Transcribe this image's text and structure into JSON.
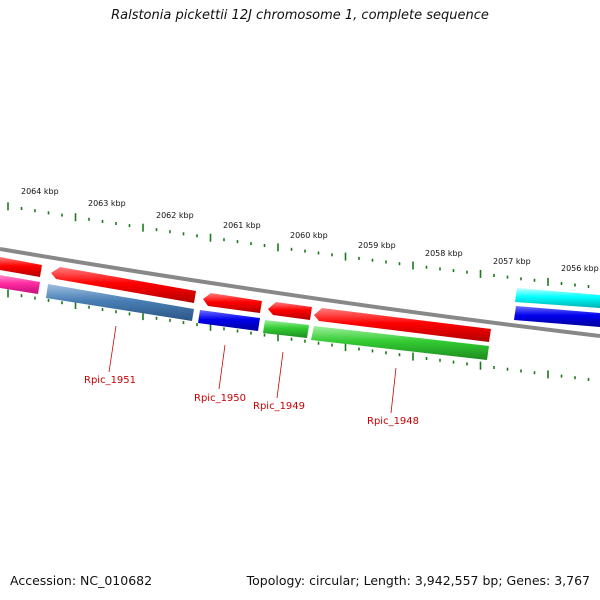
{
  "title": "Ralstonia pickettii 12J chromosome 1, complete sequence",
  "footer": {
    "accession": "Accession: NC_010682",
    "topology": "Topology: circular; Length: 3,942,557 bp; Genes: 3,767"
  },
  "scale_labels": [
    "2064 kbp",
    "2063 kbp",
    "2062 kbp",
    "2061 kbp",
    "2060 kbp",
    "2059 kbp",
    "2058 kbp",
    "2057 kbp",
    "2056 kbp"
  ],
  "gene_labels": [
    "Rpic_1951",
    "Rpic_1950",
    "Rpic_1949",
    "Rpic_1948"
  ],
  "colors": {
    "backbone": "#888888",
    "tick": "#1a7a1a",
    "label": "#cc0000",
    "forward_red": "#ff0000",
    "magenta": "#ff2aa0",
    "steelblue": "#4a7fb5",
    "blue": "#0000ee",
    "green": "#33cc33",
    "cyan": "#00ffff"
  }
}
